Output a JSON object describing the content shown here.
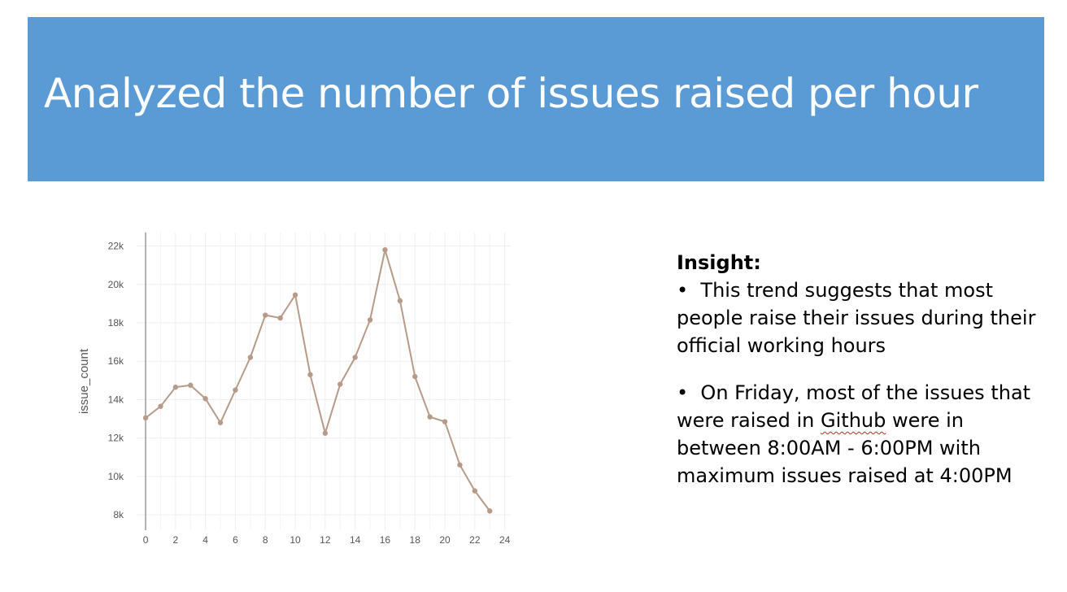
{
  "slide": {
    "title": "Analyzed the number of issues raised per hour",
    "title_band_color": "#5b9bd5"
  },
  "insight": {
    "heading": "Insight:",
    "bullets": [
      {
        "marker": "•",
        "text": "This trend suggests that most people raise their issues during their official working hours"
      },
      {
        "marker": "•",
        "pre": "On Friday, most of the issues that were raised in ",
        "highlight": "Github",
        "post": " were in between 8:00AM - 6:00PM with maximum issues raised at 4:00PM"
      }
    ]
  },
  "chart_data": {
    "type": "line",
    "ylabel": "issue_count",
    "xlabel": "",
    "x": [
      0,
      1,
      2,
      3,
      4,
      5,
      6,
      7,
      8,
      9,
      10,
      11,
      12,
      13,
      14,
      15,
      16,
      17,
      18,
      19,
      20,
      21,
      22,
      23
    ],
    "series": [
      {
        "values": [
          13050,
          13650,
          14650,
          14750,
          14050,
          12800,
          14500,
          16200,
          18400,
          18250,
          19450,
          15300,
          12250,
          14800,
          16200,
          18150,
          21800,
          19150,
          15200,
          13100,
          12850,
          10600,
          9250,
          8200
        ]
      }
    ],
    "xlim": [
      -0.6,
      24.4
    ],
    "ylim": [
      7200,
      22700
    ],
    "x_ticks": [
      0,
      2,
      4,
      6,
      8,
      10,
      12,
      14,
      16,
      18,
      20,
      22,
      24
    ],
    "x_tick_labels": [
      "0",
      "2",
      "4",
      "6",
      "8",
      "10",
      "12",
      "14",
      "16",
      "18",
      "20",
      "22",
      "24"
    ],
    "y_ticks": [
      8000,
      10000,
      12000,
      14000,
      16000,
      18000,
      20000,
      22000
    ],
    "y_tick_labels": [
      "8k",
      "10k",
      "12k",
      "14k",
      "16k",
      "18k",
      "20k",
      "22k"
    ],
    "grid": true,
    "line_color": "#b89a89",
    "grid_color": "#eeeeee",
    "axis_color": "#999999",
    "tick_label_color": "#555555"
  }
}
